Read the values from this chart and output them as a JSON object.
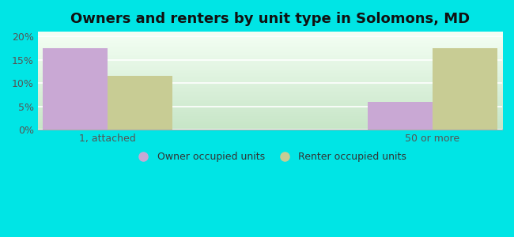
{
  "title": "Owners and renters by unit type in Solomons, MD",
  "categories": [
    "1, attached",
    "50 or more"
  ],
  "owner_values": [
    17.5,
    6.0
  ],
  "renter_values": [
    11.5,
    17.5
  ],
  "owner_color": "#c9a8d4",
  "renter_color": "#c8cc94",
  "owner_label": "Owner occupied units",
  "renter_label": "Renter occupied units",
  "ylim": [
    0,
    21
  ],
  "yticks": [
    0,
    5,
    10,
    15,
    20
  ],
  "yticklabels": [
    "0%",
    "5%",
    "10%",
    "15%",
    "20%"
  ],
  "bg_color_outer": "#00e5e5",
  "bar_width": 0.28,
  "title_fontsize": 13,
  "tick_fontsize": 9,
  "legend_fontsize": 9
}
